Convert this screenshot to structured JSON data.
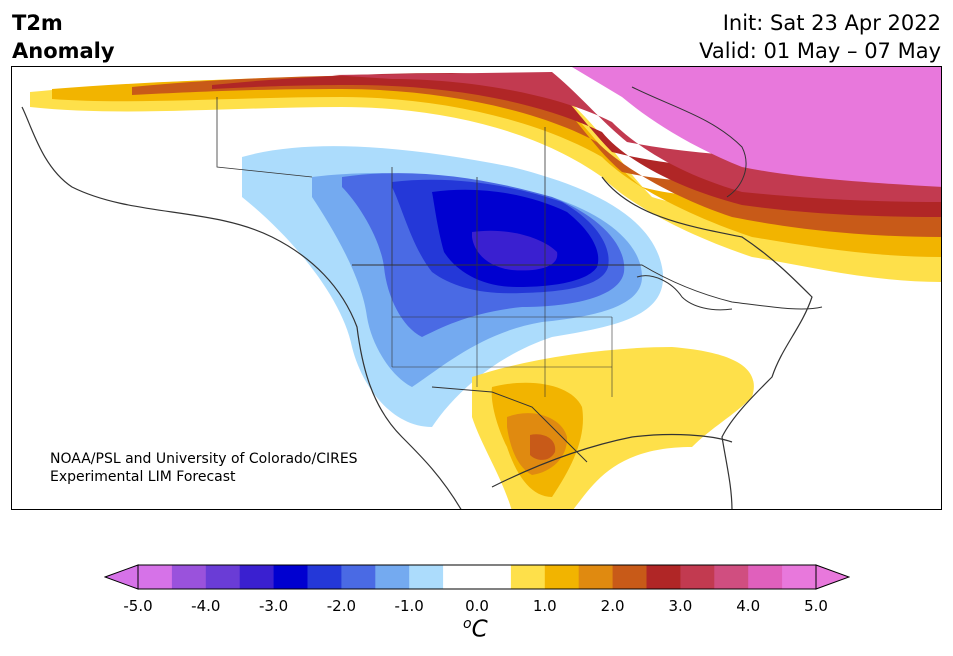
{
  "header": {
    "title_line1": "T2m",
    "title_line2": "Anomaly",
    "init": "Init: Sat 23 Apr 2022",
    "valid": "Valid: 01 May – 07 May"
  },
  "map": {
    "credit_line1": "NOAA/PSL and University of Colorado/CIRES",
    "credit_line2": "Experimental LIM Forecast"
  },
  "colorbar": {
    "unit_base": "C",
    "unit_sup": "o",
    "tick_labels": [
      "-5.0",
      "-4.0",
      "-3.0",
      "-2.0",
      "-1.0",
      "0.0",
      "1.0",
      "2.0",
      "3.0",
      "4.0",
      "5.0"
    ],
    "colors": [
      "#d672e8",
      "#9a52dc",
      "#6a3cd6",
      "#3a20d0",
      "#0000d0",
      "#2438d8",
      "#4a6ae4",
      "#74aaf0",
      "#acdcfc",
      "#ffffff",
      "#ffffff",
      "#fee04a",
      "#f2b400",
      "#e08a10",
      "#c85a18",
      "#b02626",
      "#c23a50",
      "#d04e80",
      "#e060bc",
      "#e878dc"
    ]
  }
}
